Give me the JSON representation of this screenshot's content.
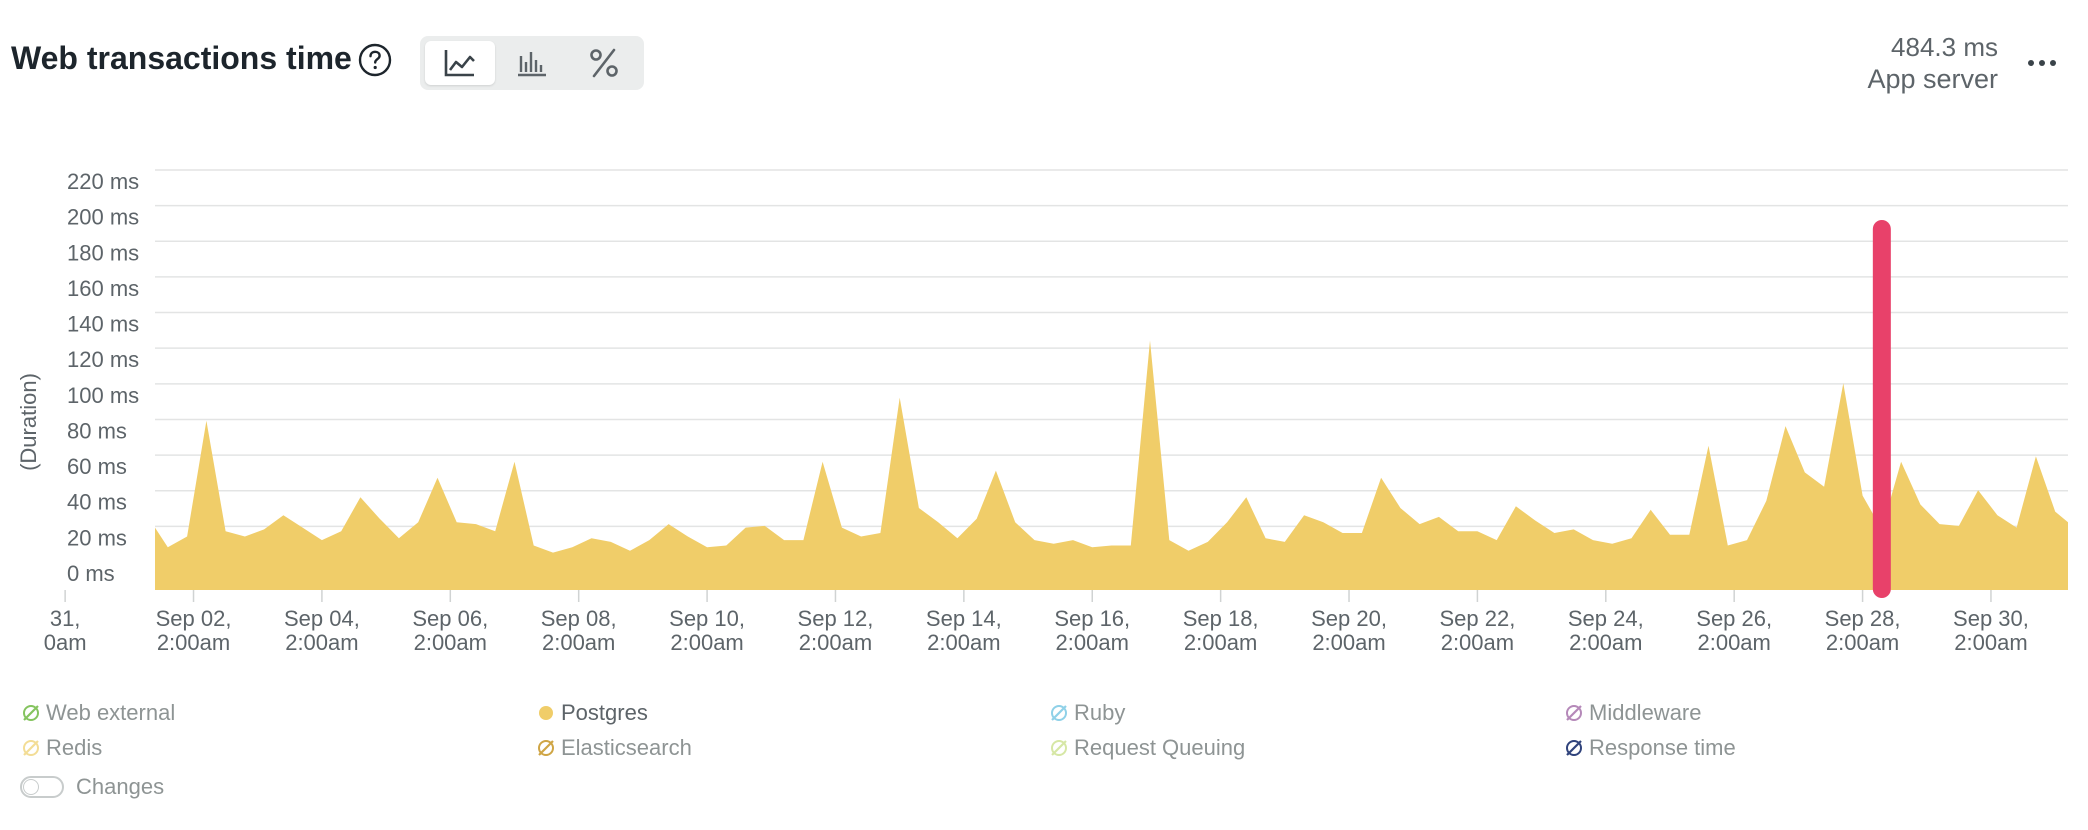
{
  "header": {
    "title": "Web transactions time",
    "summary_value": "484.3 ms",
    "summary_label": "App server",
    "help_icon": "question-circle-icon",
    "more_icon": "more-horizontal-icon",
    "view_toggle": [
      {
        "icon": "line-chart-icon",
        "active": true
      },
      {
        "icon": "bar-chart-icon",
        "active": false
      },
      {
        "icon": "percent-icon",
        "active": false
      }
    ]
  },
  "chart_data": {
    "type": "area",
    "ylabel": "(Duration)",
    "y_ticks": [
      "0 ms",
      "20 ms",
      "40 ms",
      "60 ms",
      "80 ms",
      "100 ms",
      "120 ms",
      "140 ms",
      "160 ms",
      "180 ms",
      "200 ms",
      "220 ms"
    ],
    "ylim": [
      0,
      220
    ],
    "x_ticks": [
      {
        "value": 0.0,
        "l1": "31,",
        "l2": "0am"
      },
      {
        "value": 2.0,
        "l1": "Sep 02,",
        "l2": "2:00am"
      },
      {
        "value": 4.0,
        "l1": "Sep 04,",
        "l2": "2:00am"
      },
      {
        "value": 6.0,
        "l1": "Sep 06,",
        "l2": "2:00am"
      },
      {
        "value": 8.0,
        "l1": "Sep 08,",
        "l2": "2:00am"
      },
      {
        "value": 10.0,
        "l1": "Sep 10,",
        "l2": "2:00am"
      },
      {
        "value": 12.0,
        "l1": "Sep 12,",
        "l2": "2:00am"
      },
      {
        "value": 14.0,
        "l1": "Sep 14,",
        "l2": "2:00am"
      },
      {
        "value": 16.0,
        "l1": "Sep 16,",
        "l2": "2:00am"
      },
      {
        "value": 18.0,
        "l1": "Sep 18,",
        "l2": "2:00am"
      },
      {
        "value": 20.0,
        "l1": "Sep 20,",
        "l2": "2:00am"
      },
      {
        "value": 22.0,
        "l1": "Sep 22,",
        "l2": "2:00am"
      },
      {
        "value": 24.0,
        "l1": "Sep 24,",
        "l2": "2:00am"
      },
      {
        "value": 26.0,
        "l1": "Sep 26,",
        "l2": "2:00am"
      },
      {
        "value": 28.0,
        "l1": "Sep 28,",
        "l2": "2:00am"
      },
      {
        "value": 30.0,
        "l1": "Sep 30,",
        "l2": "2:00am"
      }
    ],
    "xlim": [
      1.4,
      31.2
    ],
    "grid": true,
    "series": [
      {
        "name": "Postgres",
        "color": "#f0cd69",
        "x": [
          1.4,
          1.6,
          1.9,
          2.2,
          2.5,
          2.8,
          3.1,
          3.4,
          3.7,
          4.0,
          4.3,
          4.6,
          4.9,
          5.2,
          5.5,
          5.8,
          6.1,
          6.4,
          6.7,
          7.0,
          7.3,
          7.6,
          7.9,
          8.2,
          8.5,
          8.8,
          9.1,
          9.4,
          9.7,
          10.0,
          10.3,
          10.6,
          10.9,
          11.2,
          11.5,
          11.8,
          12.1,
          12.4,
          12.7,
          13.0,
          13.3,
          13.6,
          13.9,
          14.2,
          14.5,
          14.8,
          15.1,
          15.4,
          15.7,
          16.0,
          16.3,
          16.6,
          16.9,
          17.2,
          17.5,
          17.8,
          18.1,
          18.4,
          18.7,
          19.0,
          19.3,
          19.6,
          19.9,
          20.2,
          20.5,
          20.8,
          21.1,
          21.4,
          21.7,
          22.0,
          22.3,
          22.6,
          22.9,
          23.2,
          23.5,
          23.8,
          24.1,
          24.4,
          24.7,
          25.0,
          25.3,
          25.6,
          25.9,
          26.2,
          26.5,
          26.8,
          27.1,
          27.4,
          27.7,
          28.0,
          28.3,
          28.6,
          28.9,
          29.2,
          29.5,
          29.8,
          30.1,
          30.4,
          30.7,
          31.0,
          31.2
        ],
        "values": [
          35,
          24,
          30,
          95,
          33,
          30,
          34,
          42,
          35,
          28,
          33,
          52,
          40,
          29,
          38,
          63,
          38,
          37,
          33,
          72,
          25,
          21,
          24,
          29,
          27,
          22,
          28,
          37,
          30,
          24,
          25,
          35,
          36,
          28,
          28,
          72,
          35,
          30,
          32,
          108,
          46,
          38,
          29,
          40,
          67,
          38,
          28,
          26,
          28,
          24,
          25,
          25,
          140,
          28,
          22,
          27,
          38,
          52,
          29,
          27,
          42,
          38,
          32,
          32,
          63,
          46,
          37,
          41,
          33,
          33,
          28,
          47,
          39,
          32,
          34,
          28,
          26,
          29,
          45,
          31,
          31,
          81,
          25,
          28,
          50,
          92,
          66,
          58,
          116,
          53,
          34,
          72,
          48,
          37,
          36,
          56,
          42,
          35,
          75,
          44,
          38
        ]
      }
    ],
    "marker": {
      "x": 28.3,
      "color": "#e8416a"
    },
    "legend": [
      {
        "name": "Web external",
        "color": "#85c45f",
        "enabled": false
      },
      {
        "name": "Postgres",
        "color": "#f0cd69",
        "enabled": true
      },
      {
        "name": "Ruby",
        "color": "#8fd1e8",
        "enabled": false
      },
      {
        "name": "Middleware",
        "color": "#b589b9",
        "enabled": false
      },
      {
        "name": "Redis",
        "color": "#f3dd96",
        "enabled": false
      },
      {
        "name": "Elasticsearch",
        "color": "#cfa545",
        "enabled": false
      },
      {
        "name": "Request Queuing",
        "color": "#d6e7a5",
        "enabled": false
      },
      {
        "name": "Response time",
        "color": "#30437c",
        "enabled": false
      }
    ]
  },
  "changes_toggle": {
    "label": "Changes",
    "enabled": false
  }
}
